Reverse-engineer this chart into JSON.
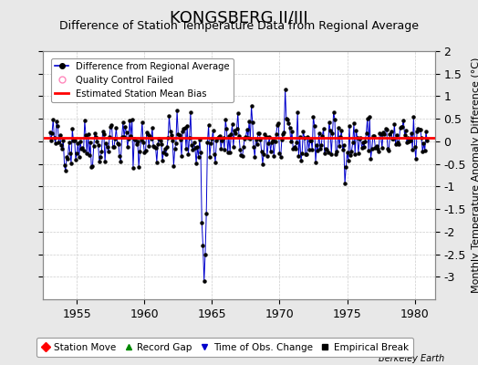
{
  "title": "KONGSBERG II/III",
  "subtitle": "Difference of Station Temperature Data from Regional Average",
  "ylabel": "Monthly Temperature Anomaly Difference (°C)",
  "xlim": [
    1952.5,
    1981.5
  ],
  "ylim": [
    -3.5,
    2.0
  ],
  "yticks": [
    -3,
    -2.5,
    -2,
    -1.5,
    -1,
    -0.5,
    0,
    0.5,
    1,
    1.5,
    2
  ],
  "ytick_labels": [
    "-3",
    "-2.5",
    "-2",
    "-1.5",
    "-1",
    "-0.5",
    "0",
    "0.5",
    "1",
    "1.5",
    "2"
  ],
  "xticks": [
    1955,
    1960,
    1965,
    1970,
    1975,
    1980
  ],
  "bias_line_y": 0.07,
  "bias_color": "#ff0000",
  "line_color": "#0000cc",
  "dot_color": "#000000",
  "bg_color": "#e8e8e8",
  "plot_bg_color": "#ffffff",
  "title_fontsize": 13,
  "subtitle_fontsize": 9,
  "tick_fontsize": 9,
  "berkeley_earth_text": "Berkeley Earth",
  "time_of_obs_change_year": 1964.42,
  "time_of_obs_change_color": "#0000cc",
  "spike_year": 1964.42,
  "spike_value": -3.1,
  "seed": 42
}
